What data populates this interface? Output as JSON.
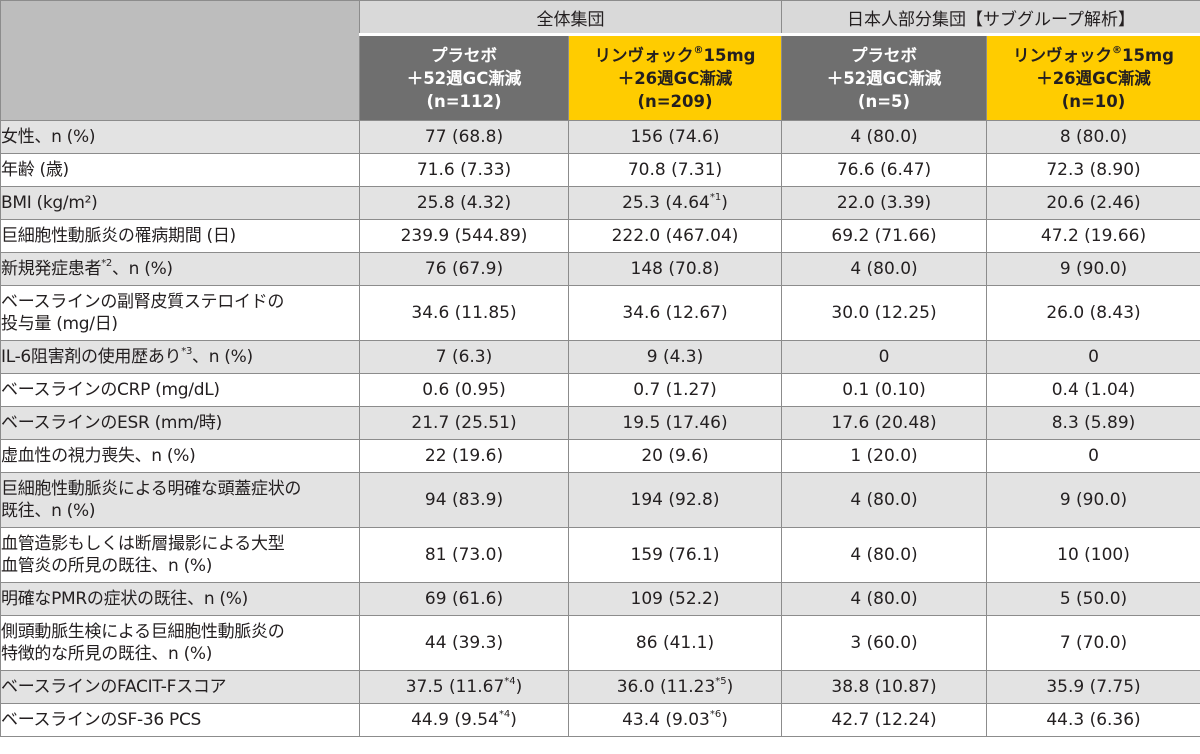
{
  "header": {
    "group_all": "全体集団",
    "group_jp": "日本人部分集団【サブグループ解析】",
    "arms": [
      {
        "name": "プラセボ",
        "regimen": "＋52週GC漸減",
        "n": "(n=112)",
        "kind": "placebo"
      },
      {
        "name": "リンヴォック®15mg",
        "regimen": "＋26週GC漸減",
        "n": "(n=209)",
        "kind": "upa"
      },
      {
        "name": "プラセボ",
        "regimen": "＋52週GC漸減",
        "n": "(n=5)",
        "kind": "placebo"
      },
      {
        "name": "リンヴォック®15mg",
        "regimen": "＋26週GC漸減",
        "n": "(n=10)",
        "kind": "upa"
      }
    ]
  },
  "rows": [
    {
      "label": [
        "女性、n (%)"
      ],
      "values": [
        "77 (68.8)",
        "156 (74.6)",
        "4 (80.0)",
        "8 (80.0)"
      ]
    },
    {
      "label": [
        "年齢 (歳)"
      ],
      "values": [
        "71.6 (7.33)",
        "70.8 (7.31)",
        "76.6 (6.47)",
        "72.3 (8.90)"
      ]
    },
    {
      "label": [
        "BMI (kg/m²)"
      ],
      "values": [
        "25.8 (4.32)",
        "25.3 (4.64*¹)",
        "22.0 (3.39)",
        "20.6 (2.46)"
      ]
    },
    {
      "label": [
        "巨細胞性動脈炎の罹病期間 (日)"
      ],
      "values": [
        "239.9 (544.89)",
        "222.0 (467.04)",
        "69.2 (71.66)",
        "47.2 (19.66)"
      ]
    },
    {
      "label": [
        "新規発症患者*²、n (%)"
      ],
      "values": [
        "76 (67.9)",
        "148 (70.8)",
        "4 (80.0)",
        "9 (90.0)"
      ]
    },
    {
      "label": [
        "ベースラインの副腎皮質ステロイドの",
        "投与量 (mg/日)"
      ],
      "values": [
        "34.6 (11.85)",
        "34.6 (12.67)",
        "30.0 (12.25)",
        "26.0 (8.43)"
      ]
    },
    {
      "label": [
        "IL-6阻害剤の使用歴あり*³、n (%)"
      ],
      "values": [
        "7 (6.3)",
        "9 (4.3)",
        "0",
        "0"
      ]
    },
    {
      "label": [
        "ベースラインのCRP (mg/dL)"
      ],
      "values": [
        "0.6 (0.95)",
        "0.7 (1.27)",
        "0.1 (0.10)",
        "0.4 (1.04)"
      ]
    },
    {
      "label": [
        "ベースラインのESR (mm/時)"
      ],
      "values": [
        "21.7 (25.51)",
        "19.5 (17.46)",
        "17.6 (20.48)",
        "8.3 (5.89)"
      ]
    },
    {
      "label": [
        "虚血性の視力喪失、n (%)"
      ],
      "values": [
        "22 (19.6)",
        "20 (9.6)",
        "1 (20.0)",
        "0"
      ]
    },
    {
      "label": [
        "巨細胞性動脈炎による明確な頭蓋症状の",
        "既往、n (%)"
      ],
      "values": [
        "94 (83.9)",
        "194 (92.8)",
        "4 (80.0)",
        "9 (90.0)"
      ]
    },
    {
      "label": [
        "血管造影もしくは断層撮影による大型",
        "血管炎の所見の既往、n (%)"
      ],
      "values": [
        "81 (73.0)",
        "159 (76.1)",
        "4 (80.0)",
        "10 (100)"
      ]
    },
    {
      "label": [
        "明確なPMRの症状の既往、n (%)"
      ],
      "values": [
        "69 (61.6)",
        "109 (52.2)",
        "4 (80.0)",
        "5 (50.0)"
      ]
    },
    {
      "label": [
        "側頭動脈生検による巨細胞性動脈炎の",
        "特徴的な所見の既往、n (%)"
      ],
      "values": [
        "44 (39.3)",
        "86 (41.1)",
        "3 (60.0)",
        "7 (70.0)"
      ]
    },
    {
      "label": [
        "ベースラインのFACIT-Fスコア"
      ],
      "values": [
        "37.5 (11.67*⁴)",
        "36.0 (11.23*⁵)",
        "38.8 (10.87)",
        "35.9 (7.75)"
      ]
    },
    {
      "label": [
        "ベースラインのSF-36 PCS"
      ],
      "values": [
        "44.9 (9.54*⁴)",
        "43.4 (9.03*⁶)",
        "42.7 (12.24)",
        "44.3 (6.36)"
      ]
    }
  ]
}
